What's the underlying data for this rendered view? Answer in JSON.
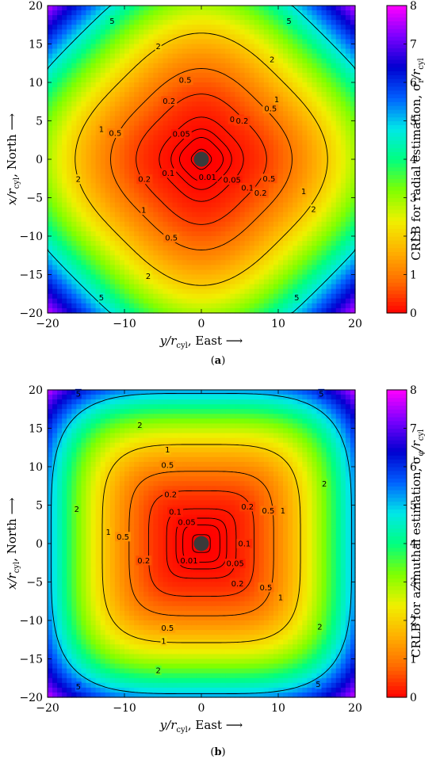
{
  "chart_data": [
    {
      "type": "heatmap",
      "panel": "(a)",
      "variant": "radial",
      "xlabel_parts": [
        "y/r",
        "cyl",
        ",    East ⟶"
      ],
      "ylabel_parts": [
        "x/r",
        "cyl",
        ",    North ⟶"
      ],
      "colorbar_label_parts": [
        "CRLB for radial estimation, σ",
        "r",
        "/r",
        "cyl"
      ],
      "xlim": [
        -20,
        20
      ],
      "ylim": [
        -20,
        20
      ],
      "xticks": [
        -20,
        -10,
        0,
        10,
        20
      ],
      "yticks": [
        -20,
        -15,
        -10,
        -5,
        0,
        5,
        10,
        15,
        20
      ],
      "clim": [
        0,
        8
      ],
      "cticks": [
        0,
        1,
        2,
        3,
        4,
        5,
        6,
        7,
        8
      ],
      "colormap": [
        "#ff0000",
        "#ff6a00",
        "#ffb000",
        "#f0f000",
        "#80ff00",
        "#00ff80",
        "#00e8e8",
        "#0060ff",
        "#0000d0",
        "#7a00ff",
        "#ff00ff"
      ],
      "contour_levels": [
        0.01,
        0.05,
        0.1,
        0.2,
        0.5,
        1,
        2,
        5
      ],
      "contour_labels": [
        {
          "text": "0.01",
          "x": 0.8,
          "y": -2.3
        },
        {
          "text": "0.05",
          "x": -2.6,
          "y": 3.3
        },
        {
          "text": "0.05",
          "x": 4.0,
          "y": -2.7
        },
        {
          "text": "0.1",
          "x": 4.5,
          "y": 5.2
        },
        {
          "text": "0.1",
          "x": -4.3,
          "y": -1.8
        },
        {
          "text": "0.1",
          "x": 6.0,
          "y": -3.7
        },
        {
          "text": "0.2",
          "x": -4.2,
          "y": 7.6
        },
        {
          "text": "0.2",
          "x": 5.3,
          "y": 5.0
        },
        {
          "text": "0.2",
          "x": -7.4,
          "y": -2.6
        },
        {
          "text": "0.2",
          "x": 7.7,
          "y": -4.4
        },
        {
          "text": "0.5",
          "x": -2.1,
          "y": 10.3
        },
        {
          "text": "0.5",
          "x": 9.0,
          "y": 6.6
        },
        {
          "text": "0.5",
          "x": -11.2,
          "y": 3.4
        },
        {
          "text": "0.5",
          "x": 8.8,
          "y": -2.5
        },
        {
          "text": "0.5",
          "x": -3.9,
          "y": -10.2
        },
        {
          "text": "1",
          "x": 9.8,
          "y": 7.8
        },
        {
          "text": "1",
          "x": -13.0,
          "y": 3.9
        },
        {
          "text": "1",
          "x": 13.3,
          "y": -4.2
        },
        {
          "text": "1",
          "x": -7.5,
          "y": -6.6
        },
        {
          "text": "2",
          "x": -5.6,
          "y": 14.7
        },
        {
          "text": "2",
          "x": 9.2,
          "y": 13.0
        },
        {
          "text": "2",
          "x": -16.0,
          "y": -2.6
        },
        {
          "text": "2",
          "x": 14.6,
          "y": -6.5
        },
        {
          "text": "2",
          "x": -6.9,
          "y": -15.2
        },
        {
          "text": "5",
          "x": -11.6,
          "y": 18.0
        },
        {
          "text": "5",
          "x": 11.4,
          "y": 18.0
        },
        {
          "text": "5",
          "x": -13.0,
          "y": -18.0
        },
        {
          "text": "5",
          "x": 12.4,
          "y": -18.0
        }
      ]
    },
    {
      "type": "heatmap",
      "panel": "(b)",
      "variant": "azimuthal",
      "xlabel_parts": [
        "y/r",
        "cyl",
        ",    East ⟶"
      ],
      "ylabel_parts": [
        "x/r",
        "cyl",
        ",    North ⟶"
      ],
      "colorbar_label_parts": [
        "CRLB for azimuthal estimation, σ",
        "φ",
        "/r",
        "cyl"
      ],
      "xlim": [
        -20,
        20
      ],
      "ylim": [
        -20,
        20
      ],
      "xticks": [
        -20,
        -10,
        0,
        10,
        20
      ],
      "yticks": [
        -20,
        -15,
        -10,
        -5,
        0,
        5,
        10,
        15,
        20
      ],
      "clim": [
        0,
        8
      ],
      "cticks": [
        0,
        1,
        2,
        3,
        4,
        5,
        6,
        7,
        8
      ],
      "colormap": [
        "#ff0000",
        "#ff6a00",
        "#ffb000",
        "#f0f000",
        "#80ff00",
        "#00ff80",
        "#00e8e8",
        "#0060ff",
        "#0000d0",
        "#7a00ff",
        "#ff00ff"
      ],
      "contour_levels": [
        0.01,
        0.05,
        0.1,
        0.2,
        0.5,
        1,
        2,
        5
      ],
      "contour_labels": [
        {
          "text": "0.01",
          "x": -1.6,
          "y": -2.2
        },
        {
          "text": "0.05",
          "x": -1.9,
          "y": 2.8
        },
        {
          "text": "0.05",
          "x": 4.4,
          "y": -2.6
        },
        {
          "text": "0.1",
          "x": -3.4,
          "y": 4.1
        },
        {
          "text": "0.1",
          "x": 5.6,
          "y": 0.0
        },
        {
          "text": "0.2",
          "x": -4.0,
          "y": 6.4
        },
        {
          "text": "0.2",
          "x": 6.0,
          "y": 4.8
        },
        {
          "text": "0.2",
          "x": -7.5,
          "y": -2.2
        },
        {
          "text": "0.2",
          "x": 4.7,
          "y": -5.2
        },
        {
          "text": "0.5",
          "x": -4.4,
          "y": 10.2
        },
        {
          "text": "0.5",
          "x": 8.7,
          "y": 4.3
        },
        {
          "text": "0.5",
          "x": -10.2,
          "y": 0.9
        },
        {
          "text": "0.5",
          "x": 8.4,
          "y": -5.7
        },
        {
          "text": "0.5",
          "x": -4.4,
          "y": -11.0
        },
        {
          "text": "1",
          "x": -4.4,
          "y": 12.2
        },
        {
          "text": "1",
          "x": 10.6,
          "y": 4.3
        },
        {
          "text": "1",
          "x": -12.1,
          "y": 1.5
        },
        {
          "text": "1",
          "x": 10.3,
          "y": -7.0
        },
        {
          "text": "1",
          "x": -4.9,
          "y": -12.7
        },
        {
          "text": "2",
          "x": -8.0,
          "y": 15.4
        },
        {
          "text": "2",
          "x": 16.0,
          "y": 7.8
        },
        {
          "text": "2",
          "x": -16.2,
          "y": 4.5
        },
        {
          "text": "2",
          "x": 15.4,
          "y": -10.8
        },
        {
          "text": "2",
          "x": -5.6,
          "y": -16.5
        },
        {
          "text": "5",
          "x": -16.0,
          "y": 19.5
        },
        {
          "text": "5",
          "x": 15.6,
          "y": 19.5
        },
        {
          "text": "5",
          "x": -16.0,
          "y": -18.6
        },
        {
          "text": "5",
          "x": 15.2,
          "y": -18.3
        }
      ]
    }
  ],
  "captions": [
    {
      "label": "a"
    },
    {
      "label": "b"
    }
  ]
}
